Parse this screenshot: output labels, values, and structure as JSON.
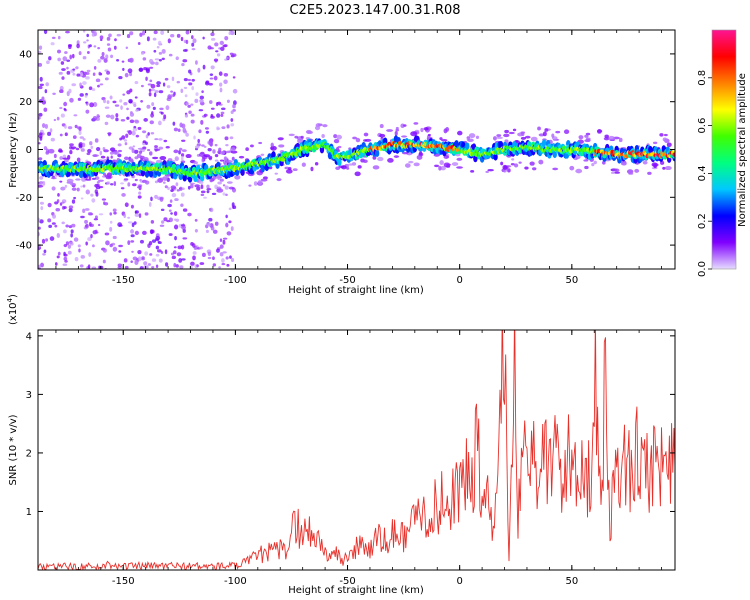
{
  "figure_title": "C2E5.2023.147.00.31.R08",
  "chart_data": [
    {
      "type": "heatmap",
      "title": "",
      "xlabel": "Height of straight line (km)",
      "ylabel": "Frequency (Hz)",
      "xlim": [
        -188,
        96
      ],
      "ylim": [
        -50,
        50
      ],
      "xticks": [
        -150,
        -100,
        -50,
        0,
        50
      ],
      "yticks": [
        -40,
        -20,
        0,
        20,
        40
      ],
      "xtick_labels": [
        "-150",
        "-100",
        "-50",
        "0",
        "50"
      ],
      "ytick_labels": [
        "-40",
        "-20",
        "0",
        "20",
        "40"
      ],
      "ridge": {
        "x": [
          -188,
          -170,
          -150,
          -130,
          -120,
          -110,
          -100,
          -90,
          -80,
          -70,
          -60,
          -55,
          -50,
          -40,
          -30,
          -20,
          -10,
          0,
          10,
          15,
          20,
          30,
          40,
          50,
          60,
          70,
          80,
          90,
          96
        ],
        "y": [
          -8,
          -8,
          -8,
          -8,
          -10,
          -9,
          -8,
          -6,
          -4,
          0,
          2,
          -3,
          -3,
          0,
          2,
          2,
          1,
          0,
          -2,
          -1,
          0,
          1,
          0,
          0,
          -1,
          -2,
          -2,
          -2,
          -2
        ]
      },
      "colorbar": {
        "label": "Normalized spectral amplitude",
        "range": [
          0,
          1
        ],
        "ticks": [
          0.0,
          0.2,
          0.4,
          0.6,
          0.8
        ],
        "tick_labels": [
          "0.0",
          "0.2",
          "0.4",
          "0.6",
          "0.8"
        ],
        "colors": [
          "#e6dcff",
          "#8000ff",
          "#0000ff",
          "#00c8ff",
          "#00ff80",
          "#40ff00",
          "#ffff00",
          "#ff8000",
          "#ff0000",
          "#ff1493"
        ]
      }
    },
    {
      "type": "line",
      "title": "",
      "xlabel": "Height of straight line (km)",
      "ylabel": "SNR (10 * v/v)",
      "y_multiplier": "(x10",
      "y_multiplier_exp": "4",
      "y_multiplier_close": ")",
      "xlim": [
        -188,
        96
      ],
      "ylim": [
        0,
        4.1
      ],
      "xticks": [
        -150,
        -100,
        -50,
        0,
        50
      ],
      "yticks": [
        1,
        2,
        3,
        4
      ],
      "xtick_labels": [
        "-150",
        "-100",
        "-50",
        "0",
        "50"
      ],
      "ytick_labels": [
        "1",
        "2",
        "3",
        "4"
      ],
      "color": "#e8302a",
      "series": [
        {
          "name": "SNR",
          "x": [
            -188,
            -170,
            -160,
            -155,
            -150,
            -130,
            -110,
            -100,
            -95,
            -90,
            -85,
            -80,
            -78,
            -75,
            -72,
            -70,
            -68,
            -65,
            -62,
            -60,
            -57,
            -55,
            -52,
            -50,
            -47,
            -45,
            -42,
            -40,
            -37,
            -35,
            -32,
            -30,
            -27,
            -25,
            -22,
            -20,
            -17,
            -15,
            -12,
            -10,
            -7,
            -5,
            -2,
            0,
            2,
            5,
            8,
            10,
            12,
            15,
            18,
            20,
            22,
            24,
            26,
            28,
            30,
            32,
            35,
            38,
            40,
            43,
            46,
            49,
            52,
            55,
            57,
            59,
            61,
            63,
            65,
            67,
            70,
            73,
            76,
            79,
            82,
            85,
            88,
            91,
            93,
            96
          ],
          "y": [
            0.05,
            0.06,
            0.05,
            0.12,
            0.06,
            0.07,
            0.06,
            0.07,
            0.12,
            0.25,
            0.3,
            0.35,
            0.3,
            0.65,
            0.8,
            0.5,
            0.75,
            0.6,
            0.45,
            0.35,
            0.2,
            0.3,
            0.15,
            0.25,
            0.3,
            0.45,
            0.4,
            0.35,
            0.55,
            0.5,
            0.45,
            0.65,
            0.5,
            0.6,
            0.9,
            0.75,
            1.1,
            0.8,
            1.2,
            0.9,
            1.3,
            1.0,
            1.5,
            1.3,
            1.6,
            1.4,
            2.2,
            0.9,
            1.5,
            0.5,
            2.5,
            3.95,
            0.2,
            4.05,
            0.6,
            2.4,
            1.8,
            2.1,
            1.6,
            1.9,
            1.7,
            2.0,
            1.6,
            1.9,
            1.7,
            2.1,
            1.5,
            1.9,
            3.35,
            1.0,
            3.25,
            0.8,
            1.9,
            1.7,
            1.8,
            1.9,
            1.7,
            1.8,
            1.9,
            1.7,
            2.2,
            1.75
          ]
        }
      ]
    }
  ]
}
